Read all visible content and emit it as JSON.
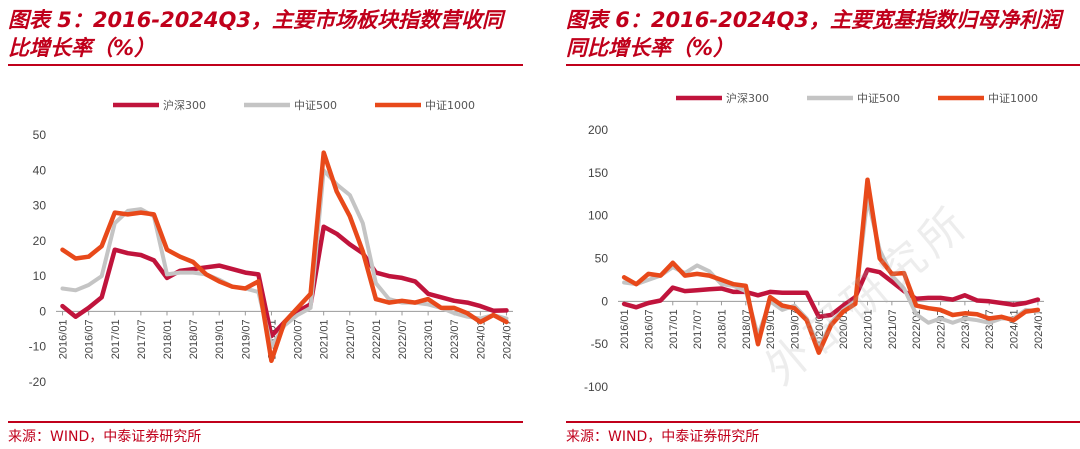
{
  "charts": [
    {
      "title": "图表 5：2016-2024Q3，主要市场板块指数营收同比增长率（%）",
      "source": "来源：WIND，中泰证券研究所",
      "chart_data": {
        "type": "line",
        "title": "图表 5：2016-2024Q3，主要市场板块指数营收同比增长率（%）",
        "ylim": [
          -20,
          50
        ],
        "yticks": [
          50,
          40,
          30,
          20,
          10,
          0,
          -10,
          -20
        ],
        "xticks": [
          "2016/01",
          "2016/07",
          "2017/01",
          "2017/07",
          "2018/01",
          "2018/07",
          "2019/01",
          "2019/07",
          "2020/01",
          "2020/07",
          "2021/01",
          "2021/07",
          "2022/01",
          "2022/07",
          "2023/01",
          "2023/07",
          "2024/01",
          "2024/07"
        ],
        "categories": [
          "2016Q1",
          "2016Q2",
          "2016Q3",
          "2016Q4",
          "2017Q1",
          "2017Q2",
          "2017Q3",
          "2017Q4",
          "2018Q1",
          "2018Q2",
          "2018Q3",
          "2018Q4",
          "2019Q1",
          "2019Q2",
          "2019Q3",
          "2019Q4",
          "2020Q1",
          "2020Q2",
          "2020Q3",
          "2020Q4",
          "2021Q1",
          "2021Q2",
          "2021Q3",
          "2021Q4",
          "2022Q1",
          "2022Q2",
          "2022Q3",
          "2022Q4",
          "2023Q1",
          "2023Q2",
          "2023Q3",
          "2023Q4",
          "2024Q1",
          "2024Q2",
          "2024Q3"
        ],
        "series": [
          {
            "name": "沪深300",
            "color": "#c0143c",
            "values": [
              1.5,
              -1.5,
              1,
              4,
              17.5,
              16.5,
              16,
              14.5,
              9.5,
              11.5,
              12,
              12.5,
              13,
              12,
              11,
              10.5,
              -7,
              -3,
              0,
              2,
              24,
              22,
              19,
              16.5,
              11,
              10,
              9.5,
              8.5,
              5,
              4,
              3,
              2.5,
              1.5,
              0.2,
              0.3
            ]
          },
          {
            "name": "中证500",
            "color": "#c4c4c4",
            "values": [
              6.5,
              6,
              7.5,
              10,
              25,
              28.5,
              29,
              27,
              10.5,
              11,
              11,
              10.5,
              9,
              7,
              6.5,
              5.5,
              -10,
              -4,
              -1,
              1,
              40,
              36,
              33,
              25,
              8,
              3.5,
              2.5,
              2.5,
              2,
              1,
              -0.5,
              -1.5,
              -2,
              -1,
              -2
            ]
          },
          {
            "name": "中证1000",
            "color": "#e8491a",
            "values": [
              17.5,
              15,
              15.5,
              18.5,
              28,
              27.5,
              28,
              27.5,
              17.5,
              15.5,
              14,
              10.5,
              8.5,
              7,
              6.5,
              8.5,
              -14,
              -3,
              1,
              5,
              45,
              34,
              27,
              17,
              3.5,
              2.5,
              3,
              2.5,
              3.5,
              1,
              1,
              -0.5,
              -3,
              -1,
              -3
            ]
          }
        ],
        "legend": "top"
      }
    },
    {
      "title": "图表 6：2016-2024Q3，主要宽基指数归母净利润同比增长率（%）",
      "source": "来源：WIND，中泰证券研究所",
      "chart_data": {
        "type": "line",
        "title": "图表 6：2016-2024Q3，主要宽基指数归母净利润同比增长率（%）",
        "ylim": [
          -100,
          200
        ],
        "yticks": [
          200,
          150,
          100,
          50,
          0,
          -50,
          -100
        ],
        "xticks": [
          "2016/01",
          "2016/07",
          "2017/01",
          "2017/07",
          "2018/01",
          "2018/07",
          "2019/01",
          "2019/07",
          "2020/01",
          "2020/07",
          "2021/01",
          "2021/07",
          "2022/01",
          "2022/07",
          "2023/01",
          "2023/07",
          "2024/01",
          "2024/07"
        ],
        "categories": [
          "2016Q1",
          "2016Q2",
          "2016Q3",
          "2016Q4",
          "2017Q1",
          "2017Q2",
          "2017Q3",
          "2017Q4",
          "2018Q1",
          "2018Q2",
          "2018Q3",
          "2018Q4",
          "2019Q1",
          "2019Q2",
          "2019Q3",
          "2019Q4",
          "2020Q1",
          "2020Q2",
          "2020Q3",
          "2020Q4",
          "2021Q1",
          "2021Q2",
          "2021Q3",
          "2021Q4",
          "2022Q1",
          "2022Q2",
          "2022Q3",
          "2022Q4",
          "2023Q1",
          "2023Q2",
          "2023Q3",
          "2023Q4",
          "2024Q1",
          "2024Q2",
          "2024Q3"
        ],
        "series": [
          {
            "name": "沪深300",
            "color": "#c0143c",
            "values": [
              -3,
              -7,
              -2,
              1,
              16,
              12,
              13,
              14,
              15,
              11,
              11,
              7,
              11,
              10,
              10,
              10,
              -18,
              -16,
              -5,
              5,
              37,
              34,
              23,
              12,
              3,
              4,
              4,
              2,
              7,
              1,
              0,
              -2,
              -4,
              -2,
              2
            ]
          },
          {
            "name": "中证500",
            "color": "#c4c4c4",
            "values": [
              22,
              20,
              25,
              30,
              40,
              33,
              42,
              35,
              20,
              18,
              12,
              -40,
              0,
              -10,
              -5,
              -20,
              -55,
              -25,
              -10,
              0,
              120,
              60,
              30,
              15,
              -15,
              -25,
              -20,
              -25,
              -20,
              -22,
              -25,
              -20,
              -20,
              -10,
              -12
            ]
          },
          {
            "name": "中证1000",
            "color": "#e8491a",
            "values": [
              28,
              20,
              32,
              30,
              45,
              30,
              32,
              30,
              25,
              20,
              18,
              -50,
              5,
              -5,
              -8,
              -22,
              -60,
              -28,
              -12,
              -3,
              142,
              50,
              32,
              33,
              -5,
              -8,
              -10,
              -16,
              -14,
              -15,
              -20,
              -18,
              -22,
              -12,
              -10
            ]
          }
        ],
        "legend": "top"
      }
    }
  ],
  "watermark": "外部研究所"
}
